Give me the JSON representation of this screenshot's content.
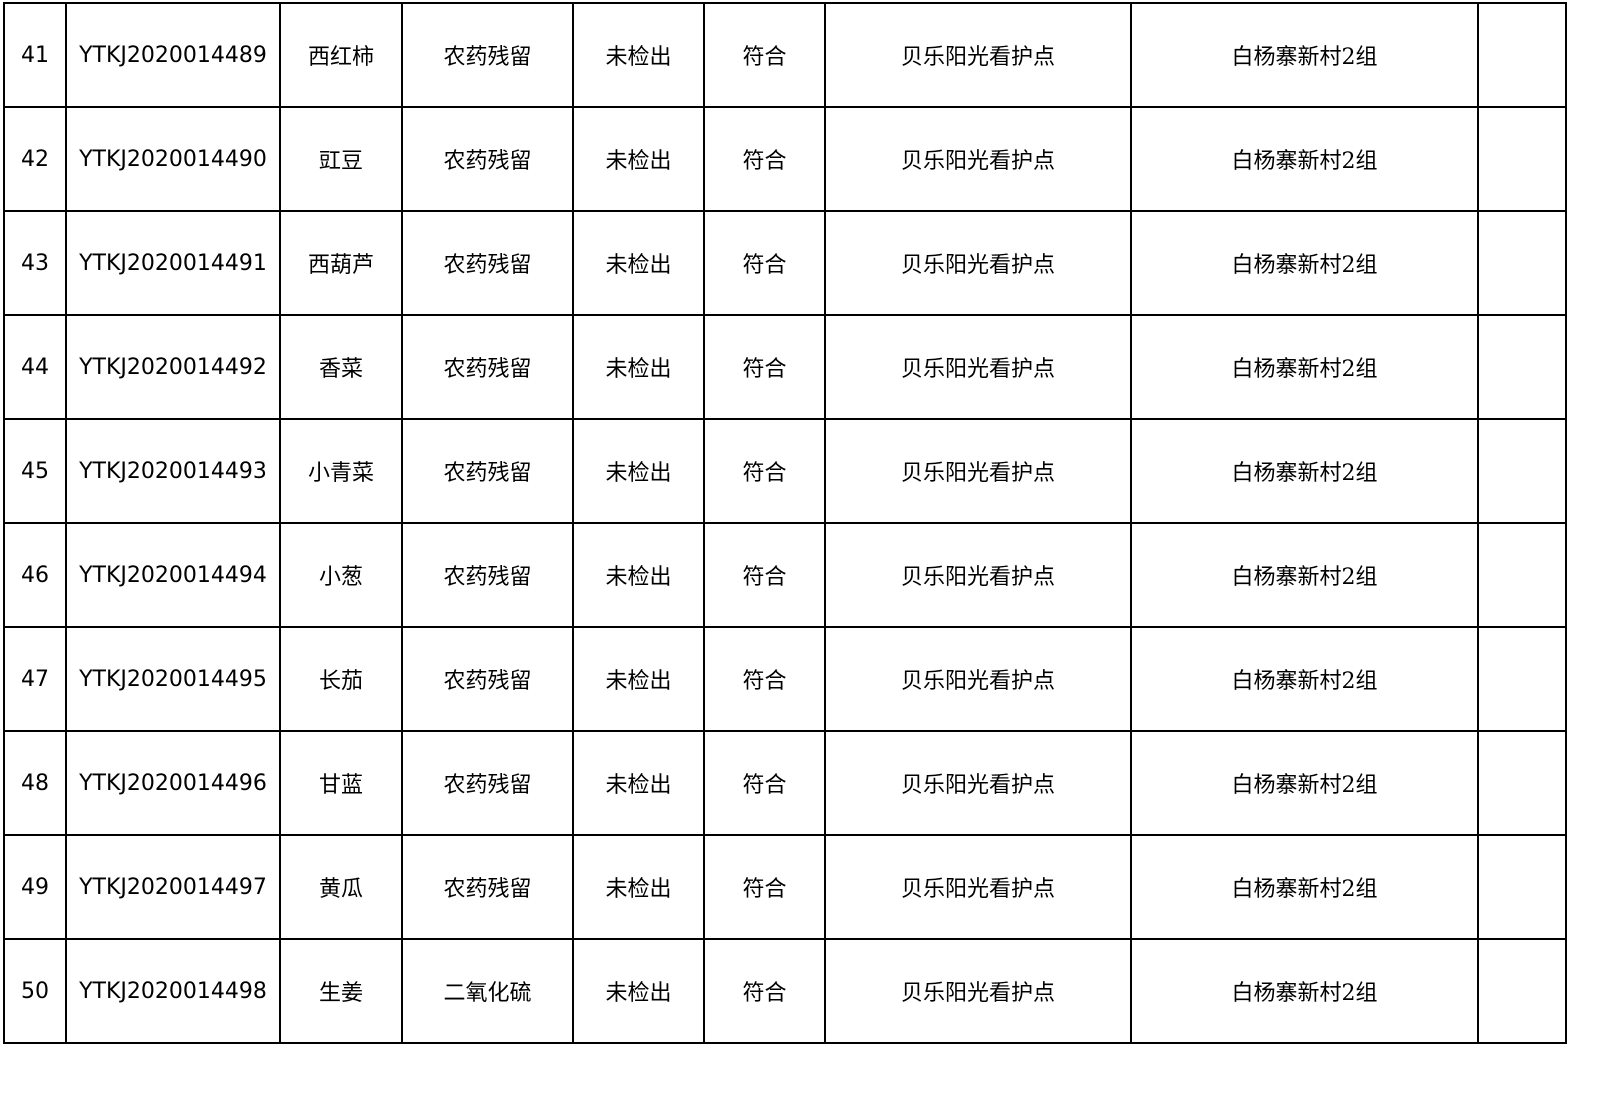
{
  "table": {
    "rows": [
      [
        "41",
        "YTKJ2020014489",
        "西红柿",
        "农药残留",
        "未检出",
        "符合",
        "贝乐阳光看护点",
        "白杨寨新村2组"
      ],
      [
        "42",
        "YTKJ2020014490",
        "豇豆",
        "农药残留",
        "未检出",
        "符合",
        "贝乐阳光看护点",
        "白杨寨新村2组"
      ],
      [
        "43",
        "YTKJ2020014491",
        "西葫芦",
        "农药残留",
        "未检出",
        "符合",
        "贝乐阳光看护点",
        "白杨寨新村2组"
      ],
      [
        "44",
        "YTKJ2020014492",
        "香菜",
        "农药残留",
        "未检出",
        "符合",
        "贝乐阳光看护点",
        "白杨寨新村2组"
      ],
      [
        "45",
        "YTKJ2020014493",
        "小青菜",
        "农药残留",
        "未检出",
        "符合",
        "贝乐阳光看护点",
        "白杨寨新村2组"
      ],
      [
        "46",
        "YTKJ2020014494",
        "小葱",
        "农药残留",
        "未检出",
        "符合",
        "贝乐阳光看护点",
        "白杨寨新村2组"
      ],
      [
        "47",
        "YTKJ2020014495",
        "长茄",
        "农药残留",
        "未检出",
        "符合",
        "贝乐阳光看护点",
        "白杨寨新村2组"
      ],
      [
        "48",
        "YTKJ2020014496",
        "甘蓝",
        "农药残留",
        "未检出",
        "符合",
        "贝乐阳光看护点",
        "白杨寨新村2组"
      ],
      [
        "49",
        "YTKJ2020014497",
        "黄瓜",
        "农药残留",
        "未检出",
        "符合",
        "贝乐阳光看护点",
        "白杨寨新村2组"
      ],
      [
        "50",
        "YTKJ2020014498",
        "生姜",
        "二氧化硫",
        "未检出",
        "符合",
        "贝乐阳光看护点",
        "白杨寨新村2组"
      ]
    ]
  }
}
